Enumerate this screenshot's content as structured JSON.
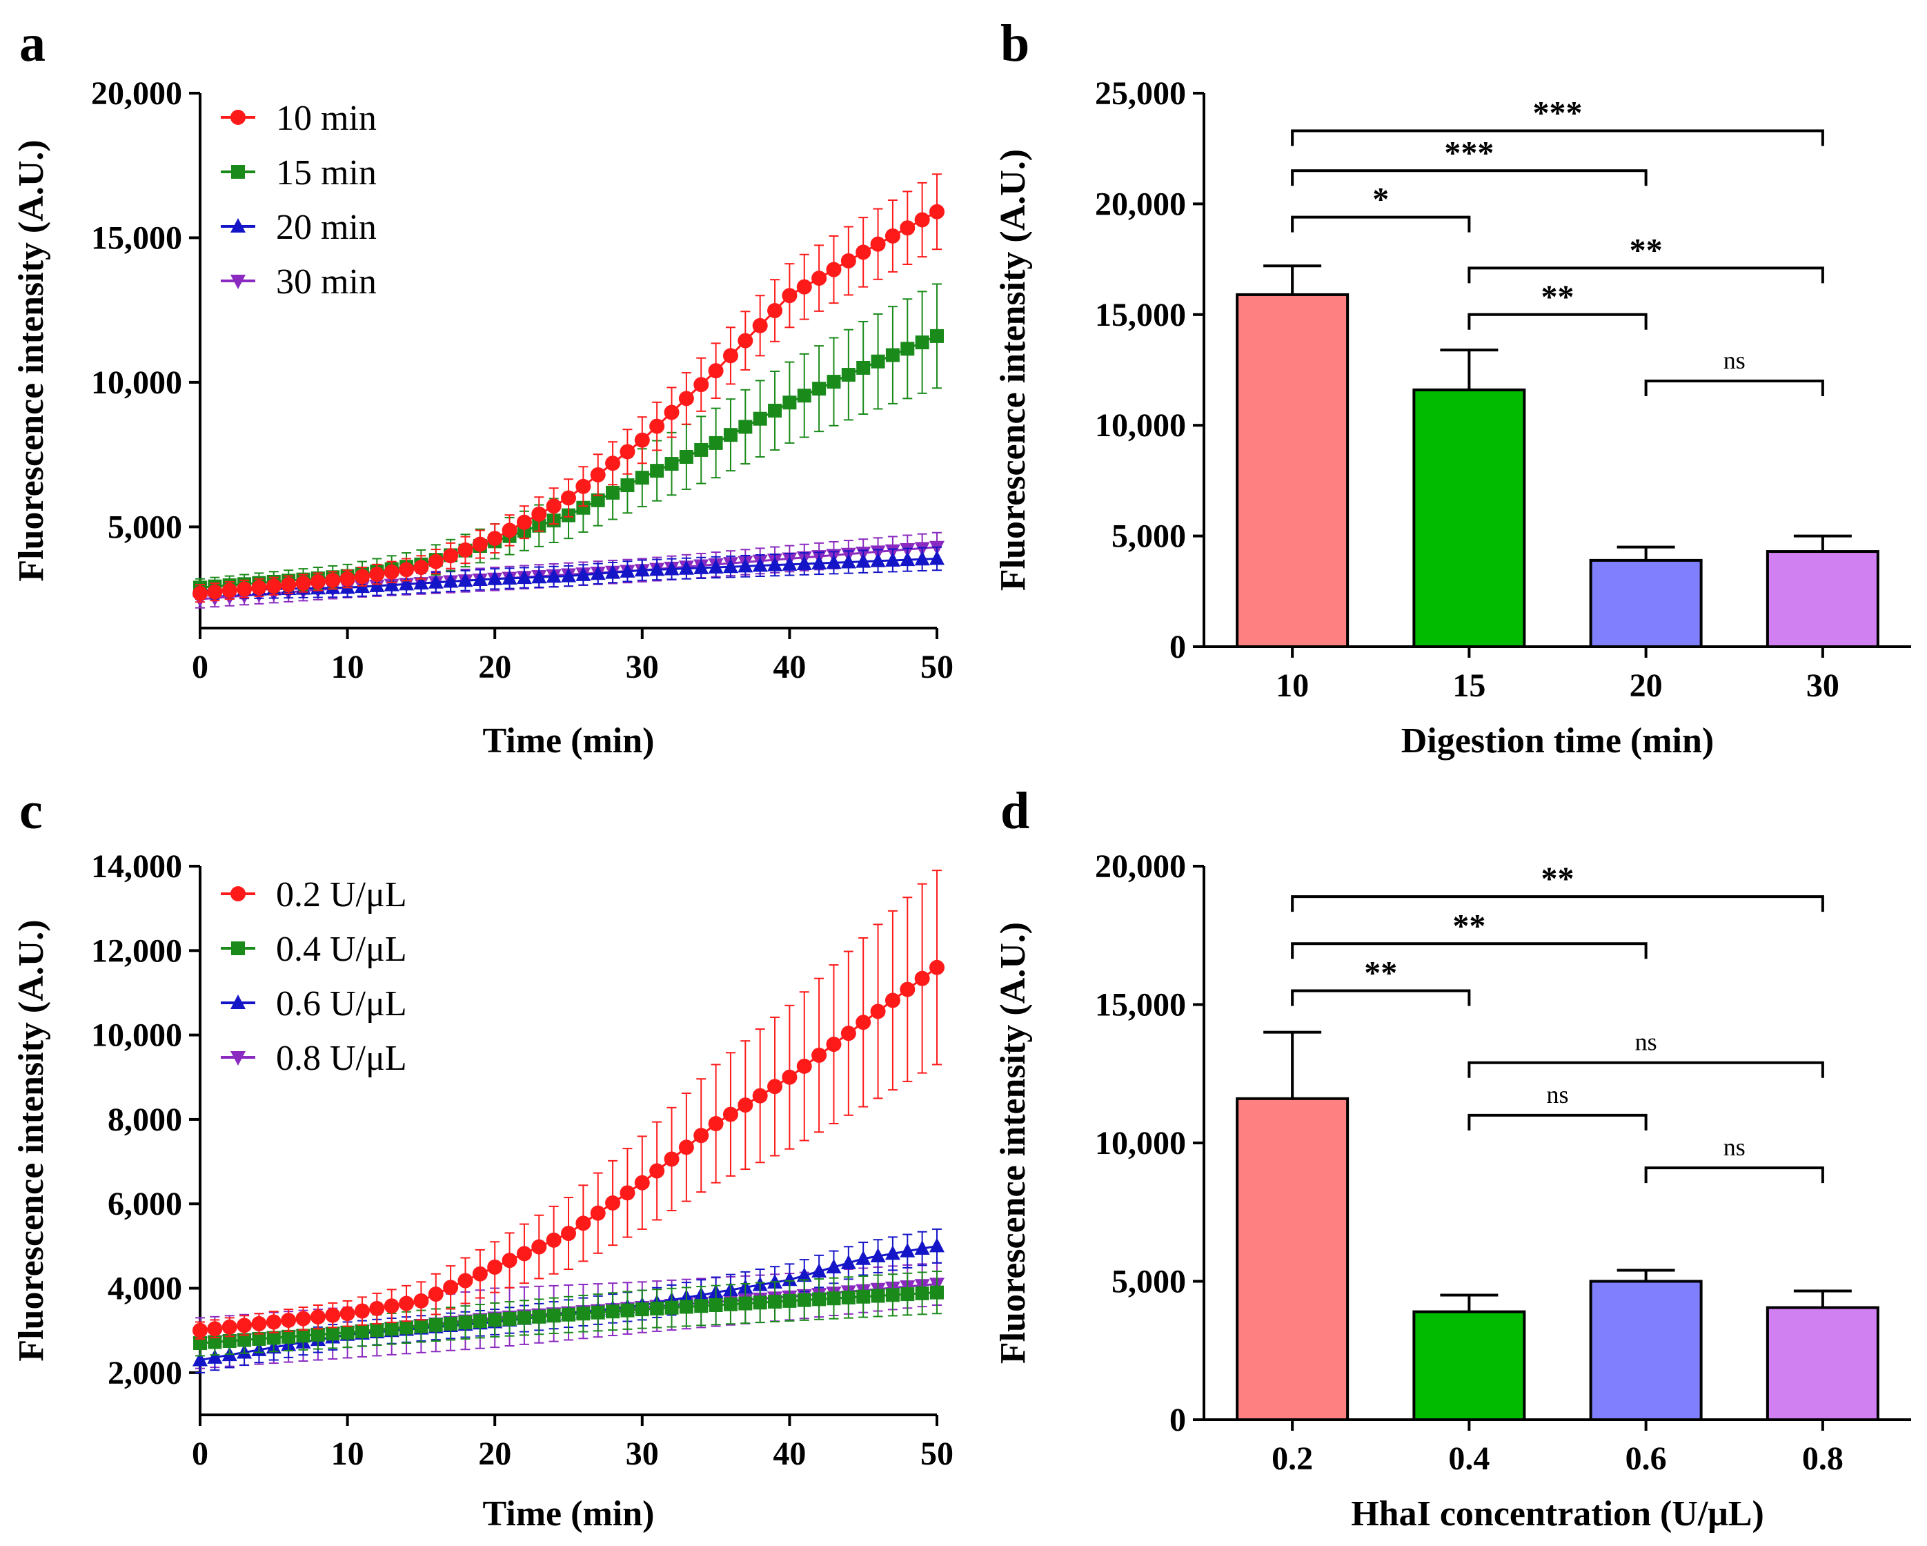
{
  "figure": {
    "panels": [
      "a",
      "b",
      "c",
      "d"
    ]
  },
  "chart_data": [
    {
      "panel": "a",
      "type": "line",
      "xlabel": "Time (min)",
      "ylabel": "Fluorescence intensity (A.U.)",
      "xlim": [
        0,
        50
      ],
      "ylim": [
        1500,
        20000
      ],
      "xticks": [
        0,
        10,
        20,
        30,
        40,
        50
      ],
      "xtick_labels": [
        "0",
        "10",
        "20",
        "30",
        "40",
        "50"
      ],
      "yticks": [
        5000,
        10000,
        15000,
        20000
      ],
      "ytick_labels": [
        "5,000",
        "10,000",
        "15,000",
        "20,000"
      ],
      "legend": "top-left",
      "x_step": 1,
      "series": [
        {
          "name": "10 min",
          "color": "#ff1a1a",
          "marker": "circle",
          "anchors": [
            [
              0,
              2700
            ],
            [
              10,
              3200
            ],
            [
              15,
              3600
            ],
            [
              20,
              4600
            ],
            [
              25,
              6000
            ],
            [
              30,
              8000
            ],
            [
              35,
              10400
            ],
            [
              40,
              13000
            ],
            [
              45,
              14500
            ],
            [
              50,
              15900
            ]
          ],
          "err_anchors": [
            [
              0,
              300
            ],
            [
              10,
              300
            ],
            [
              20,
              500
            ],
            [
              30,
              800
            ],
            [
              40,
              1100
            ],
            [
              50,
              1300
            ]
          ]
        },
        {
          "name": "15 min",
          "color": "#1a8a1a",
          "marker": "square",
          "anchors": [
            [
              0,
              2900
            ],
            [
              10,
              3300
            ],
            [
              15,
              3700
            ],
            [
              20,
              4500
            ],
            [
              25,
              5400
            ],
            [
              30,
              6700
            ],
            [
              35,
              7900
            ],
            [
              40,
              9300
            ],
            [
              45,
              10500
            ],
            [
              50,
              11600
            ]
          ],
          "err_anchors": [
            [
              0,
              300
            ],
            [
              10,
              400
            ],
            [
              20,
              600
            ],
            [
              30,
              1000
            ],
            [
              40,
              1400
            ],
            [
              50,
              1800
            ]
          ]
        },
        {
          "name": "20 min",
          "color": "#1515c8",
          "marker": "triangle-up",
          "anchors": [
            [
              0,
              2800
            ],
            [
              10,
              2900
            ],
            [
              20,
              3200
            ],
            [
              25,
              3300
            ],
            [
              30,
              3500
            ],
            [
              40,
              3700
            ],
            [
              50,
              3900
            ]
          ],
          "err_anchors": [
            [
              0,
              300
            ],
            [
              20,
              350
            ],
            [
              30,
              350
            ],
            [
              50,
              400
            ]
          ]
        },
        {
          "name": "30 min",
          "color": "#8a2ac0",
          "marker": "triangle-down",
          "anchors": [
            [
              0,
              2500
            ],
            [
              10,
              2900
            ],
            [
              20,
              3200
            ],
            [
              30,
              3500
            ],
            [
              40,
              3900
            ],
            [
              50,
              4300
            ]
          ],
          "err_anchors": [
            [
              0,
              300
            ],
            [
              20,
              400
            ],
            [
              30,
              400
            ],
            [
              50,
              500
            ]
          ]
        }
      ]
    },
    {
      "panel": "b",
      "type": "bar",
      "xlabel": "Digestion time (min)",
      "ylabel": "Fluorescence intensity (A.U.)",
      "ylim": [
        0,
        25000
      ],
      "yticks": [
        0,
        5000,
        10000,
        15000,
        20000,
        25000
      ],
      "ytick_labels": [
        "0",
        "5,000",
        "10,000",
        "15,000",
        "20,000",
        "25,000"
      ],
      "categories": [
        "10",
        "15",
        "20",
        "30"
      ],
      "values": [
        15900,
        11600,
        3900,
        4300
      ],
      "errors": [
        1300,
        1800,
        600,
        700
      ],
      "colors": [
        "#ff8080",
        "#00bb00",
        "#8080ff",
        "#d080f0"
      ],
      "significance": [
        {
          "from": 0,
          "to": 1,
          "y": 19400,
          "label": "*"
        },
        {
          "from": 0,
          "to": 2,
          "y": 21500,
          "label": "***"
        },
        {
          "from": 0,
          "to": 3,
          "y": 23300,
          "label": "***"
        },
        {
          "from": 1,
          "to": 2,
          "y": 15000,
          "label": "**"
        },
        {
          "from": 1,
          "to": 3,
          "y": 17100,
          "label": "**"
        },
        {
          "from": 2,
          "to": 3,
          "y": 12000,
          "label": "ns"
        }
      ]
    },
    {
      "panel": "c",
      "type": "line",
      "xlabel": "Time (min)",
      "ylabel": "Fluorescence intensity (A.U.)",
      "xlim": [
        0,
        50
      ],
      "ylim": [
        1000,
        14000
      ],
      "xticks": [
        0,
        10,
        20,
        30,
        40,
        50
      ],
      "xtick_labels": [
        "0",
        "10",
        "20",
        "30",
        "40",
        "50"
      ],
      "yticks": [
        2000,
        4000,
        6000,
        8000,
        10000,
        12000,
        14000
      ],
      "ytick_labels": [
        "2,000",
        "4,000",
        "6,000",
        "8,000",
        "10,000",
        "12,000",
        "14,000"
      ],
      "legend": "top-left",
      "x_step": 1,
      "series": [
        {
          "name": "0.2 U/μL",
          "color": "#ff1a1a",
          "marker": "circle",
          "anchors": [
            [
              0,
              3000
            ],
            [
              10,
              3400
            ],
            [
              15,
              3700
            ],
            [
              20,
              4500
            ],
            [
              25,
              5300
            ],
            [
              30,
              6500
            ],
            [
              35,
              7900
            ],
            [
              40,
              9000
            ],
            [
              45,
              10300
            ],
            [
              50,
              11600
            ]
          ],
          "err_anchors": [
            [
              0,
              200
            ],
            [
              10,
              300
            ],
            [
              20,
              600
            ],
            [
              30,
              1100
            ],
            [
              40,
              1700
            ],
            [
              50,
              2300
            ]
          ]
        },
        {
          "name": "0.4 U/μL",
          "color": "#1a8a1a",
          "marker": "square",
          "anchors": [
            [
              0,
              2700
            ],
            [
              10,
              2950
            ],
            [
              20,
              3250
            ],
            [
              30,
              3500
            ],
            [
              40,
              3700
            ],
            [
              50,
              3900
            ]
          ],
          "err_anchors": [
            [
              0,
              300
            ],
            [
              20,
              400
            ],
            [
              30,
              450
            ],
            [
              50,
              500
            ]
          ]
        },
        {
          "name": "0.6 U/μL",
          "color": "#1515c8",
          "marker": "triangle-up",
          "anchors": [
            [
              0,
              2300
            ],
            [
              10,
              2900
            ],
            [
              20,
              3200
            ],
            [
              30,
              3600
            ],
            [
              40,
              4200
            ],
            [
              45,
              4700
            ],
            [
              50,
              5000
            ]
          ],
          "err_anchors": [
            [
              0,
              300
            ],
            [
              20,
              300
            ],
            [
              30,
              350
            ],
            [
              50,
              400
            ]
          ]
        },
        {
          "name": "0.8 U/μL",
          "color": "#8a2ac0",
          "marker": "triangle-down",
          "anchors": [
            [
              0,
              2700
            ],
            [
              10,
              2950
            ],
            [
              20,
              3300
            ],
            [
              30,
              3550
            ],
            [
              40,
              3800
            ],
            [
              50,
              4100
            ]
          ],
          "err_anchors": [
            [
              0,
              600
            ],
            [
              10,
              600
            ],
            [
              20,
              700
            ],
            [
              30,
              600
            ],
            [
              50,
              500
            ]
          ]
        }
      ]
    },
    {
      "panel": "d",
      "type": "bar",
      "xlabel": "HhaI concentration (U/μL)",
      "ylabel": "Fluorescence intensity (A.U.)",
      "ylim": [
        0,
        20000
      ],
      "yticks": [
        0,
        5000,
        10000,
        15000,
        20000
      ],
      "ytick_labels": [
        "0",
        "5,000",
        "10,000",
        "15,000",
        "20,000"
      ],
      "categories": [
        "0.2",
        "0.4",
        "0.6",
        "0.8"
      ],
      "values": [
        11600,
        3900,
        5000,
        4050
      ],
      "errors": [
        2400,
        600,
        400,
        600
      ],
      "colors": [
        "#ff8080",
        "#00bb00",
        "#8080ff",
        "#d080f0"
      ],
      "significance": [
        {
          "from": 0,
          "to": 1,
          "y": 15500,
          "label": "**"
        },
        {
          "from": 0,
          "to": 2,
          "y": 17200,
          "label": "**"
        },
        {
          "from": 0,
          "to": 3,
          "y": 18900,
          "label": "**"
        },
        {
          "from": 1,
          "to": 2,
          "y": 11000,
          "label": "ns"
        },
        {
          "from": 1,
          "to": 3,
          "y": 12900,
          "label": "ns"
        },
        {
          "from": 2,
          "to": 3,
          "y": 9100,
          "label": "ns"
        }
      ]
    }
  ]
}
